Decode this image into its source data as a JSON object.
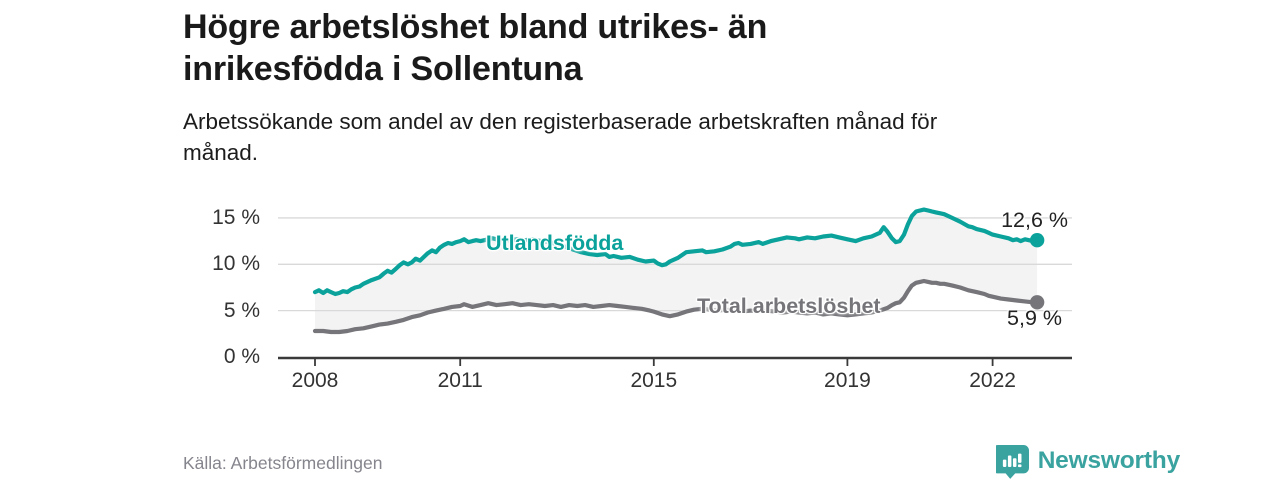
{
  "header": {
    "title": "Högre arbetslöshet bland utrikes- än inrikesfödda i Sollentuna",
    "title_lines": [
      "Högre arbetslöshet bland utrikes- än",
      "inrikesfödda i Sollentuna"
    ],
    "subtitle": "Arbetssökande som andel av den registerbaserade arbetskraften månad för månad.",
    "subtitle_lines": [
      "Arbetssökande som andel av den registerbaserade arbetskraften månad för",
      "månad."
    ]
  },
  "footer": {
    "source": "Källa: Arbetsförmedlingen",
    "brand": "Newsworthy",
    "brand_color": "#3aa3a0",
    "logo_icon": "bar-chart-speech-bubble-icon"
  },
  "colors": {
    "accent_teal": "#0aa29b",
    "series_gray": "#75757a",
    "band_fill": "#f3f3f4",
    "gridline": "#d9d9d9",
    "axis": "#3a3a3a"
  },
  "chart_data": {
    "type": "line",
    "title": "Högre arbetslöshet bland utrikes- än inrikesfödda i Sollentuna",
    "subtitle": "Arbetssökande som andel av den registerbaserade arbetskraften månad för månad.",
    "unit": "%",
    "grid": true,
    "legend": "inline-labels-on-lines",
    "band_fill_between_series": true,
    "band_color": "#f3f3f4",
    "x_axis": {
      "label": "",
      "range_years": [
        2007.25,
        2023.65
      ],
      "ticks": [
        {
          "value": 2008,
          "label": "2008"
        },
        {
          "value": 2011,
          "label": "2011"
        },
        {
          "value": 2015,
          "label": "2015"
        },
        {
          "value": 2019,
          "label": "2019"
        },
        {
          "value": 2022,
          "label": "2022"
        }
      ]
    },
    "y_axis": {
      "label": "",
      "range": [
        0,
        16.5
      ],
      "ticks": [
        {
          "value": 0,
          "label": "0 %"
        },
        {
          "value": 5,
          "label": "5 %"
        },
        {
          "value": 10,
          "label": "10 %"
        },
        {
          "value": 15,
          "label": "15 %"
        }
      ]
    },
    "series": [
      {
        "name": "Utlandsfödda",
        "color": "#0aa29b",
        "end_value": 12.6,
        "end_label": "12,6 %",
        "points": [
          [
            2008.0,
            7.0
          ],
          [
            2008.08,
            7.2
          ],
          [
            2008.17,
            6.9
          ],
          [
            2008.25,
            7.2
          ],
          [
            2008.33,
            7.0
          ],
          [
            2008.42,
            6.8
          ],
          [
            2008.5,
            6.9
          ],
          [
            2008.58,
            7.1
          ],
          [
            2008.67,
            7.0
          ],
          [
            2008.75,
            7.3
          ],
          [
            2008.83,
            7.5
          ],
          [
            2008.92,
            7.6
          ],
          [
            2009.0,
            7.9
          ],
          [
            2009.17,
            8.3
          ],
          [
            2009.33,
            8.6
          ],
          [
            2009.42,
            9.0
          ],
          [
            2009.5,
            9.3
          ],
          [
            2009.58,
            9.1
          ],
          [
            2009.67,
            9.5
          ],
          [
            2009.75,
            9.9
          ],
          [
            2009.83,
            10.2
          ],
          [
            2009.92,
            10.0
          ],
          [
            2010.0,
            10.2
          ],
          [
            2010.08,
            10.6
          ],
          [
            2010.17,
            10.4
          ],
          [
            2010.25,
            10.8
          ],
          [
            2010.33,
            11.2
          ],
          [
            2010.42,
            11.5
          ],
          [
            2010.5,
            11.3
          ],
          [
            2010.58,
            11.8
          ],
          [
            2010.67,
            12.1
          ],
          [
            2010.75,
            12.3
          ],
          [
            2010.83,
            12.2
          ],
          [
            2010.92,
            12.4
          ],
          [
            2011.0,
            12.5
          ],
          [
            2011.08,
            12.7
          ],
          [
            2011.17,
            12.4
          ],
          [
            2011.25,
            12.5
          ],
          [
            2011.33,
            12.6
          ],
          [
            2011.42,
            12.5
          ],
          [
            2011.5,
            12.6
          ],
          [
            2011.58,
            12.7
          ],
          [
            2011.67,
            12.8
          ],
          [
            2011.75,
            12.7
          ],
          [
            2011.83,
            12.6
          ],
          [
            2011.92,
            12.7
          ],
          [
            2012.0,
            12.6
          ],
          [
            2012.17,
            12.7
          ],
          [
            2012.33,
            12.6
          ],
          [
            2012.5,
            12.7
          ],
          [
            2012.67,
            12.5
          ],
          [
            2012.83,
            12.4
          ],
          [
            2013.0,
            12.2
          ],
          [
            2013.17,
            11.9
          ],
          [
            2013.33,
            11.6
          ],
          [
            2013.5,
            11.3
          ],
          [
            2013.67,
            11.1
          ],
          [
            2013.83,
            11.0
          ],
          [
            2014.0,
            11.1
          ],
          [
            2014.08,
            10.8
          ],
          [
            2014.17,
            10.9
          ],
          [
            2014.33,
            10.7
          ],
          [
            2014.5,
            10.8
          ],
          [
            2014.67,
            10.5
          ],
          [
            2014.83,
            10.3
          ],
          [
            2015.0,
            10.4
          ],
          [
            2015.08,
            10.1
          ],
          [
            2015.17,
            9.9
          ],
          [
            2015.25,
            10.0
          ],
          [
            2015.33,
            10.3
          ],
          [
            2015.5,
            10.7
          ],
          [
            2015.67,
            11.3
          ],
          [
            2015.83,
            11.4
          ],
          [
            2016.0,
            11.5
          ],
          [
            2016.08,
            11.3
          ],
          [
            2016.25,
            11.4
          ],
          [
            2016.42,
            11.6
          ],
          [
            2016.58,
            11.9
          ],
          [
            2016.67,
            12.2
          ],
          [
            2016.75,
            12.3
          ],
          [
            2016.83,
            12.1
          ],
          [
            2017.0,
            12.2
          ],
          [
            2017.17,
            12.4
          ],
          [
            2017.25,
            12.2
          ],
          [
            2017.42,
            12.5
          ],
          [
            2017.58,
            12.7
          ],
          [
            2017.75,
            12.9
          ],
          [
            2017.92,
            12.8
          ],
          [
            2018.0,
            12.7
          ],
          [
            2018.17,
            12.9
          ],
          [
            2018.33,
            12.8
          ],
          [
            2018.5,
            13.0
          ],
          [
            2018.67,
            13.1
          ],
          [
            2018.83,
            12.9
          ],
          [
            2019.0,
            12.7
          ],
          [
            2019.17,
            12.5
          ],
          [
            2019.33,
            12.8
          ],
          [
            2019.5,
            13.0
          ],
          [
            2019.67,
            13.4
          ],
          [
            2019.75,
            14.0
          ],
          [
            2019.83,
            13.5
          ],
          [
            2019.92,
            12.8
          ],
          [
            2020.0,
            12.4
          ],
          [
            2020.08,
            12.5
          ],
          [
            2020.17,
            13.2
          ],
          [
            2020.25,
            14.3
          ],
          [
            2020.33,
            15.2
          ],
          [
            2020.42,
            15.7
          ],
          [
            2020.5,
            15.8
          ],
          [
            2020.58,
            15.9
          ],
          [
            2020.67,
            15.8
          ],
          [
            2020.75,
            15.7
          ],
          [
            2020.83,
            15.6
          ],
          [
            2020.92,
            15.5
          ],
          [
            2021.0,
            15.4
          ],
          [
            2021.17,
            15.0
          ],
          [
            2021.33,
            14.6
          ],
          [
            2021.5,
            14.1
          ],
          [
            2021.58,
            14.0
          ],
          [
            2021.67,
            13.8
          ],
          [
            2021.83,
            13.6
          ],
          [
            2021.92,
            13.4
          ],
          [
            2022.0,
            13.2
          ],
          [
            2022.17,
            13.0
          ],
          [
            2022.33,
            12.8
          ],
          [
            2022.42,
            12.6
          ],
          [
            2022.5,
            12.7
          ],
          [
            2022.58,
            12.5
          ],
          [
            2022.67,
            12.7
          ],
          [
            2022.75,
            12.6
          ],
          [
            2022.83,
            12.5
          ],
          [
            2022.92,
            12.6
          ]
        ]
      },
      {
        "name": "Total arbetslöshet",
        "color": "#75757a",
        "end_value": 5.9,
        "end_label": "5,9 %",
        "points": [
          [
            2008.0,
            2.8
          ],
          [
            2008.17,
            2.8
          ],
          [
            2008.33,
            2.7
          ],
          [
            2008.5,
            2.7
          ],
          [
            2008.67,
            2.8
          ],
          [
            2008.83,
            3.0
          ],
          [
            2009.0,
            3.1
          ],
          [
            2009.17,
            3.3
          ],
          [
            2009.33,
            3.5
          ],
          [
            2009.5,
            3.6
          ],
          [
            2009.67,
            3.8
          ],
          [
            2009.83,
            4.0
          ],
          [
            2010.0,
            4.3
          ],
          [
            2010.17,
            4.5
          ],
          [
            2010.33,
            4.8
          ],
          [
            2010.5,
            5.0
          ],
          [
            2010.67,
            5.2
          ],
          [
            2010.83,
            5.4
          ],
          [
            2011.0,
            5.5
          ],
          [
            2011.08,
            5.7
          ],
          [
            2011.25,
            5.4
          ],
          [
            2011.42,
            5.6
          ],
          [
            2011.58,
            5.8
          ],
          [
            2011.75,
            5.6
          ],
          [
            2011.92,
            5.7
          ],
          [
            2012.08,
            5.8
          ],
          [
            2012.25,
            5.6
          ],
          [
            2012.42,
            5.7
          ],
          [
            2012.58,
            5.6
          ],
          [
            2012.75,
            5.5
          ],
          [
            2012.92,
            5.6
          ],
          [
            2013.08,
            5.4
          ],
          [
            2013.25,
            5.6
          ],
          [
            2013.42,
            5.5
          ],
          [
            2013.58,
            5.6
          ],
          [
            2013.75,
            5.4
          ],
          [
            2013.92,
            5.5
          ],
          [
            2014.08,
            5.6
          ],
          [
            2014.25,
            5.5
          ],
          [
            2014.42,
            5.4
          ],
          [
            2014.58,
            5.3
          ],
          [
            2014.75,
            5.2
          ],
          [
            2014.92,
            5.0
          ],
          [
            2015.0,
            4.9
          ],
          [
            2015.17,
            4.6
          ],
          [
            2015.33,
            4.4
          ],
          [
            2015.5,
            4.6
          ],
          [
            2015.67,
            4.9
          ],
          [
            2015.83,
            5.1
          ],
          [
            2016.0,
            5.2
          ],
          [
            2016.17,
            5.1
          ],
          [
            2016.33,
            5.0
          ],
          [
            2016.5,
            5.1
          ],
          [
            2016.67,
            5.0
          ],
          [
            2016.83,
            4.9
          ],
          [
            2017.0,
            5.0
          ],
          [
            2017.17,
            4.9
          ],
          [
            2017.33,
            5.0
          ],
          [
            2017.5,
            4.9
          ],
          [
            2017.67,
            4.8
          ],
          [
            2017.83,
            4.9
          ],
          [
            2018.0,
            4.8
          ],
          [
            2018.17,
            4.7
          ],
          [
            2018.33,
            4.8
          ],
          [
            2018.5,
            4.6
          ],
          [
            2018.67,
            4.7
          ],
          [
            2018.83,
            4.6
          ],
          [
            2019.0,
            4.5
          ],
          [
            2019.17,
            4.6
          ],
          [
            2019.33,
            4.7
          ],
          [
            2019.5,
            4.8
          ],
          [
            2019.67,
            5.0
          ],
          [
            2019.83,
            5.3
          ],
          [
            2019.92,
            5.6
          ],
          [
            2020.0,
            5.8
          ],
          [
            2020.08,
            5.9
          ],
          [
            2020.17,
            6.4
          ],
          [
            2020.25,
            7.1
          ],
          [
            2020.33,
            7.7
          ],
          [
            2020.42,
            8.0
          ],
          [
            2020.5,
            8.1
          ],
          [
            2020.58,
            8.2
          ],
          [
            2020.67,
            8.1
          ],
          [
            2020.75,
            8.0
          ],
          [
            2020.83,
            8.0
          ],
          [
            2020.92,
            7.9
          ],
          [
            2021.0,
            7.9
          ],
          [
            2021.17,
            7.7
          ],
          [
            2021.33,
            7.5
          ],
          [
            2021.5,
            7.2
          ],
          [
            2021.67,
            7.0
          ],
          [
            2021.83,
            6.8
          ],
          [
            2021.92,
            6.6
          ],
          [
            2022.0,
            6.5
          ],
          [
            2022.17,
            6.3
          ],
          [
            2022.33,
            6.2
          ],
          [
            2022.5,
            6.1
          ],
          [
            2022.67,
            6.0
          ],
          [
            2022.83,
            5.9
          ],
          [
            2022.92,
            5.9
          ]
        ]
      }
    ]
  }
}
